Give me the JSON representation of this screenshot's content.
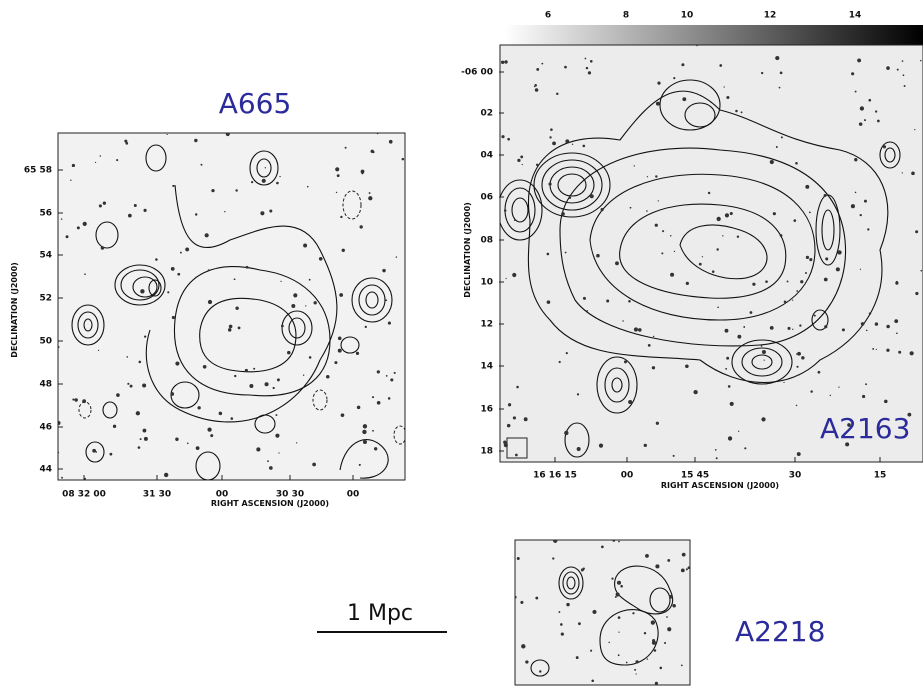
{
  "panels": [
    {
      "label": "A665",
      "x_axis_label": "RIGHT ASCENSION (J2000)",
      "y_axis_label": "DECLINATION (J2000)",
      "x_ticks": [
        "08 32 00",
        "31 30",
        "00",
        "30 30",
        "00"
      ],
      "y_ticks": [
        "65 58",
        "56",
        "54",
        "52",
        "50",
        "48",
        "46",
        "44"
      ]
    },
    {
      "label": "A2163",
      "x_axis_label": "RIGHT ASCENSION (J2000)",
      "y_axis_label": "DECLINATION (J2000)",
      "x_ticks": [
        "16 16 15",
        "00",
        "15 45",
        "30",
        "15"
      ],
      "y_ticks": [
        "-06 00",
        "02",
        "04",
        "06",
        "08",
        "10",
        "12",
        "14",
        "16",
        "18"
      ],
      "colorbar_ticks": [
        "6",
        "8",
        "10",
        "12",
        "14"
      ]
    },
    {
      "label": "A2218"
    }
  ],
  "scale_bar": "1 Mpc"
}
